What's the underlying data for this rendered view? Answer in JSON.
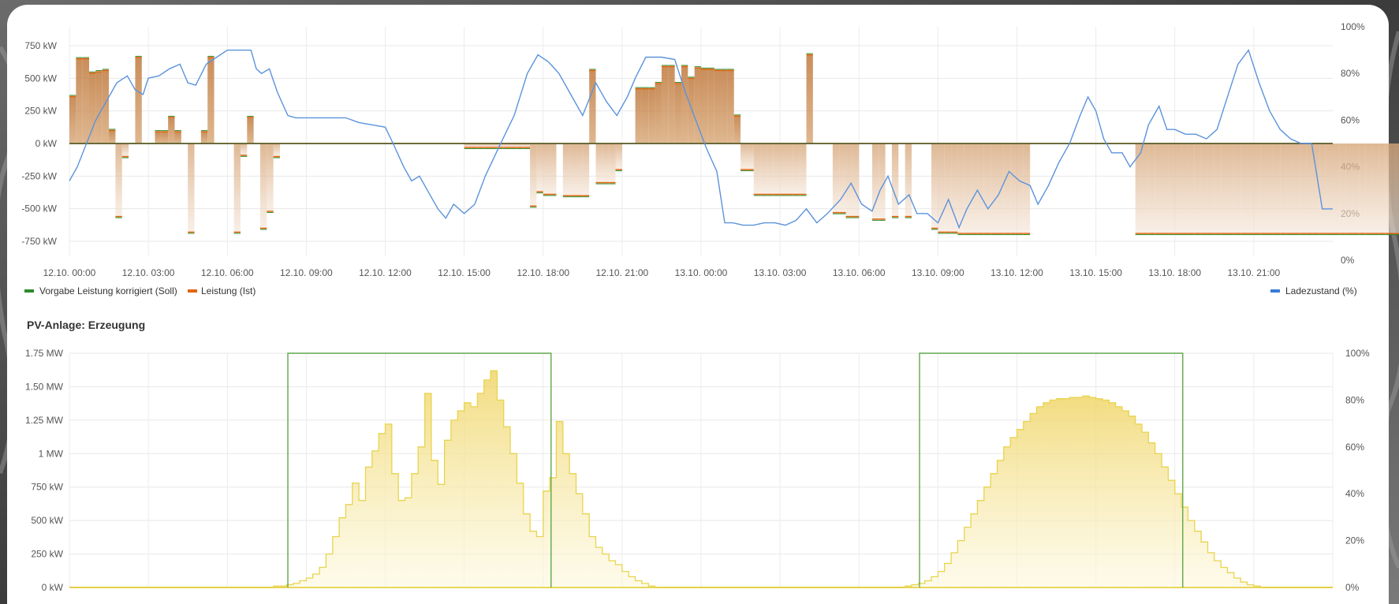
{
  "chart_data": [
    {
      "type": "area",
      "title": "",
      "x_ticks": [
        "12.10. 00:00",
        "12.10. 03:00",
        "12.10. 06:00",
        "12.10. 09:00",
        "12.10. 12:00",
        "12.10. 15:00",
        "12.10. 18:00",
        "12.10. 21:00",
        "13.10. 00:00",
        "13.10. 03:00",
        "13.10. 06:00",
        "13.10. 09:00",
        "13.10. 12:00",
        "13.10. 15:00",
        "13.10. 18:00",
        "13.10. 21:00"
      ],
      "x_range_hours": [
        0,
        48
      ],
      "y_left": {
        "unit": "kW",
        "lim": [
          -750,
          750
        ],
        "ticks": [
          "750 kW",
          "500 kW",
          "250 kW",
          "0 kW",
          "-250 kW",
          "-500 kW",
          "-750 kW"
        ]
      },
      "y_right": {
        "unit": "%",
        "lim": [
          0,
          100
        ],
        "ticks": [
          "100%",
          "80%",
          "60%",
          "40%",
          "20%",
          "0%"
        ]
      },
      "grid": true,
      "legend_left": [
        "Vorgabe Leistung korrigiert (Soll)",
        "Leistung (Ist)"
      ],
      "legend_right": [
        "Ladezustand (%)"
      ],
      "series": [
        {
          "name": "Leistung (Ist)",
          "color": "#e3650e",
          "step_hours": 0.25,
          "start_hour": 0,
          "values": [
            360,
            650,
            650,
            540,
            550,
            560,
            100,
            -560,
            -100,
            0,
            660,
            0,
            0,
            90,
            90,
            200,
            90,
            0,
            -680,
            0,
            90,
            660,
            0,
            0,
            0,
            -680,
            -90,
            200,
            0,
            -650,
            -520,
            -100,
            0,
            0,
            0,
            0,
            0,
            0,
            0,
            0,
            0,
            0,
            0,
            0,
            0,
            0,
            0,
            0,
            0,
            0,
            0,
            0,
            0,
            0,
            0,
            0,
            0,
            0,
            0,
            0,
            -30,
            -30,
            -30,
            -30,
            -30,
            -30,
            -30,
            -30,
            -30,
            -30,
            -480,
            -370,
            -390,
            -390,
            0,
            -400,
            -400,
            -400,
            -400,
            560,
            -300,
            -300,
            -300,
            -200,
            0,
            0,
            420,
            420,
            420,
            460,
            590,
            590,
            460,
            590,
            500,
            580,
            570,
            570,
            560,
            560,
            560,
            210,
            -200,
            -200,
            -390,
            -390,
            -390,
            -390,
            -390,
            -390,
            -390,
            -390,
            680,
            0,
            0,
            0,
            -530,
            -530,
            -560,
            -560,
            0,
            0,
            -580,
            -580,
            0,
            -560,
            0,
            -560,
            0,
            0,
            0,
            -650,
            -680,
            -680,
            -680,
            -690,
            -690,
            -690,
            -690,
            -690,
            -690,
            -690,
            -690,
            -690,
            -690,
            -690,
            0,
            0,
            0,
            0,
            0,
            0,
            0,
            0,
            0,
            0,
            0,
            0,
            0,
            0,
            0,
            0,
            -690,
            -690,
            -690,
            -690,
            -690,
            -690,
            -690,
            -690,
            -690,
            -690,
            -690,
            -690,
            -690,
            -690,
            -690,
            -690,
            -690,
            -690,
            -690,
            -690,
            -690,
            -690,
            -690,
            -690,
            -690,
            -690,
            -690,
            -690,
            -690,
            -690,
            -690,
            -690,
            -690,
            -690,
            -690,
            -690,
            -690,
            -690,
            -690,
            -690,
            -690,
            -690,
            -690,
            -690,
            -690,
            -690,
            -690,
            -690,
            -690,
            -690,
            -690,
            -690,
            -690,
            -690,
            -690
          ]
        },
        {
          "name": "Ladezustand (%)",
          "color": "#5b93dc",
          "axis": "right",
          "points": [
            [
              0,
              34
            ],
            [
              0.3,
              40
            ],
            [
              1.0,
              60
            ],
            [
              1.5,
              70
            ],
            [
              1.8,
              76
            ],
            [
              2.2,
              79
            ],
            [
              2.5,
              73
            ],
            [
              2.8,
              71
            ],
            [
              3.0,
              78
            ],
            [
              3.4,
              79
            ],
            [
              3.8,
              82
            ],
            [
              4.2,
              84
            ],
            [
              4.5,
              76
            ],
            [
              4.8,
              75
            ],
            [
              5.2,
              84
            ],
            [
              5.6,
              87
            ],
            [
              6.0,
              90
            ],
            [
              6.3,
              90
            ],
            [
              6.6,
              90
            ],
            [
              6.9,
              90
            ],
            [
              7.1,
              82
            ],
            [
              7.3,
              80
            ],
            [
              7.6,
              82
            ],
            [
              7.9,
              72
            ],
            [
              8.3,
              62
            ],
            [
              8.6,
              61
            ],
            [
              9.0,
              61
            ],
            [
              9.5,
              61
            ],
            [
              10.0,
              61
            ],
            [
              10.5,
              61
            ],
            [
              11.0,
              59
            ],
            [
              11.5,
              58
            ],
            [
              12.0,
              57
            ],
            [
              12.3,
              50
            ],
            [
              12.7,
              40
            ],
            [
              13.0,
              34
            ],
            [
              13.3,
              36
            ],
            [
              13.6,
              30
            ],
            [
              14.0,
              22
            ],
            [
              14.3,
              18
            ],
            [
              14.6,
              24
            ],
            [
              15.0,
              20
            ],
            [
              15.4,
              24
            ],
            [
              15.8,
              36
            ],
            [
              16.3,
              48
            ],
            [
              16.9,
              62
            ],
            [
              17.4,
              80
            ],
            [
              17.8,
              88
            ],
            [
              18.2,
              85
            ],
            [
              18.6,
              80
            ],
            [
              19.0,
              72
            ],
            [
              19.5,
              62
            ],
            [
              20.0,
              76
            ],
            [
              20.4,
              68
            ],
            [
              20.8,
              62
            ],
            [
              21.2,
              70
            ],
            [
              21.5,
              78
            ],
            [
              21.9,
              87
            ],
            [
              22.5,
              87
            ],
            [
              23.0,
              86
            ],
            [
              23.4,
              72
            ],
            [
              23.8,
              60
            ],
            [
              24.2,
              48
            ],
            [
              24.6,
              38
            ],
            [
              24.9,
              16
            ],
            [
              25.2,
              16
            ],
            [
              25.6,
              15
            ],
            [
              26.0,
              15
            ],
            [
              26.4,
              16
            ],
            [
              26.8,
              16
            ],
            [
              27.2,
              15
            ],
            [
              27.6,
              17
            ],
            [
              28.0,
              22
            ],
            [
              28.4,
              16
            ],
            [
              28.8,
              20
            ],
            [
              29.3,
              26
            ],
            [
              29.7,
              33
            ],
            [
              30.1,
              24
            ],
            [
              30.5,
              21
            ],
            [
              30.8,
              30
            ],
            [
              31.1,
              36
            ],
            [
              31.5,
              24
            ],
            [
              31.9,
              28
            ],
            [
              32.2,
              20
            ],
            [
              32.6,
              20
            ],
            [
              33.0,
              16
            ],
            [
              33.4,
              26
            ],
            [
              33.8,
              14
            ],
            [
              34.1,
              22
            ],
            [
              34.5,
              30
            ],
            [
              34.9,
              22
            ],
            [
              35.3,
              28
            ],
            [
              35.7,
              38
            ],
            [
              36.1,
              34
            ],
            [
              36.5,
              32
            ],
            [
              36.8,
              24
            ],
            [
              37.2,
              32
            ],
            [
              37.6,
              42
            ],
            [
              38.0,
              50
            ],
            [
              38.4,
              62
            ],
            [
              38.7,
              70
            ],
            [
              39.0,
              64
            ],
            [
              39.3,
              52
            ],
            [
              39.6,
              46
            ],
            [
              40.0,
              46
            ],
            [
              40.3,
              40
            ],
            [
              40.7,
              46
            ],
            [
              41.0,
              58
            ],
            [
              41.4,
              66
            ],
            [
              41.7,
              56
            ],
            [
              42.0,
              56
            ],
            [
              42.4,
              54
            ],
            [
              42.8,
              54
            ],
            [
              43.2,
              52
            ],
            [
              43.6,
              56
            ],
            [
              44.0,
              70
            ],
            [
              44.4,
              84
            ],
            [
              44.8,
              90
            ],
            [
              45.2,
              76
            ],
            [
              45.6,
              64
            ],
            [
              46.0,
              56
            ],
            [
              46.4,
              52
            ],
            [
              46.8,
              50
            ],
            [
              47.2,
              50
            ],
            [
              47.6,
              22
            ],
            [
              48,
              22
            ]
          ]
        }
      ]
    },
    {
      "type": "area",
      "title": "PV-Anlage: Erzeugung",
      "x_range_hours": [
        0,
        48
      ],
      "y_left": {
        "unit": "MW",
        "lim": [
          0,
          1.75
        ],
        "ticks": [
          "1.75 MW",
          "1.50 MW",
          "1.25 MW",
          "1 MW",
          "750 kW",
          "500 kW",
          "250 kW",
          "0 kW"
        ]
      },
      "y_right": {
        "unit": "%",
        "lim": [
          0,
          100
        ],
        "ticks": [
          "100%",
          "80%",
          "60%",
          "40%",
          "20%",
          "0%"
        ]
      },
      "grid": true,
      "series": [
        {
          "name": "",
          "color": "#e8d44d",
          "step_hours": 0.25,
          "start_hour": 7.75,
          "values": [
            0.01,
            0.01,
            0.02,
            0.03,
            0.05,
            0.07,
            0.1,
            0.15,
            0.25,
            0.38,
            0.52,
            0.62,
            0.78,
            0.65,
            0.9,
            1.02,
            1.15,
            1.22,
            0.85,
            0.65,
            0.67,
            0.85,
            1.05,
            1.45,
            0.95,
            0.77,
            1.1,
            1.25,
            1.32,
            1.38,
            1.35,
            1.45,
            1.55,
            1.62,
            1.4,
            1.2,
            1.0,
            0.78,
            0.55,
            0.42,
            0.38,
            0.72,
            0.82,
            1.24,
            1.0,
            0.85,
            0.7,
            0.55,
            0.38,
            0.3,
            0.25,
            0.2,
            0.17,
            0.12,
            0.08,
            0.05,
            0.03,
            0.01,
            0
          ]
        },
        {
          "name": "",
          "color": "#e8d44d",
          "step_hours": 0.25,
          "start_hour": 31.75,
          "values": [
            0.01,
            0.02,
            0.03,
            0.05,
            0.08,
            0.12,
            0.18,
            0.26,
            0.35,
            0.45,
            0.55,
            0.65,
            0.75,
            0.85,
            0.95,
            1.05,
            1.12,
            1.18,
            1.24,
            1.3,
            1.35,
            1.38,
            1.4,
            1.41,
            1.41,
            1.42,
            1.42,
            1.43,
            1.42,
            1.41,
            1.4,
            1.38,
            1.35,
            1.32,
            1.28,
            1.22,
            1.16,
            1.08,
            1.0,
            0.9,
            0.8,
            0.7,
            0.6,
            0.5,
            0.42,
            0.34,
            0.26,
            0.2,
            0.15,
            0.11,
            0.07,
            0.04,
            0.02,
            0.01,
            0
          ]
        }
      ],
      "indicator": {
        "color": "#5fa84a",
        "windows_hours": [
          [
            8.3,
            18.3
          ],
          [
            32.3,
            42.3
          ]
        ]
      }
    }
  ]
}
